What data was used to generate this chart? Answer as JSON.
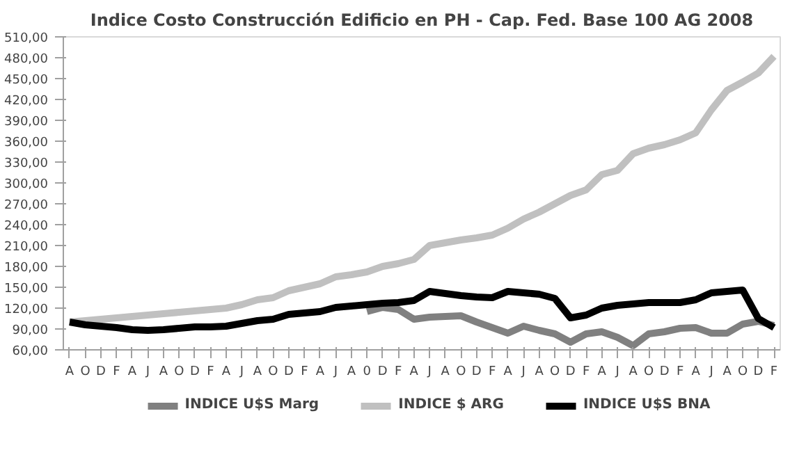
{
  "chart_data": {
    "type": "line",
    "title": "Indice Costo Construcción Edificio en PH - Cap. Fed. Base 100 AG 2008",
    "categories": [
      "A",
      "O",
      "D",
      "F",
      "A",
      "J",
      "A",
      "O",
      "D",
      "F",
      "A",
      "J",
      "A",
      "O",
      "D",
      "F",
      "A",
      "J",
      "A",
      "0",
      "D",
      "F",
      "A",
      "J",
      "A",
      "O",
      "D",
      "F",
      "A",
      "J",
      "A",
      "O",
      "D",
      "F",
      "A",
      "J",
      "A",
      "O",
      "D",
      "F",
      "A",
      "J",
      "A",
      "O",
      "D",
      "F"
    ],
    "series": [
      {
        "name": "INDICE U$S Marg",
        "color": "#808080",
        "values": [
          null,
          null,
          null,
          null,
          null,
          null,
          null,
          null,
          null,
          null,
          null,
          null,
          null,
          null,
          null,
          null,
          null,
          null,
          null,
          115,
          121,
          118,
          104,
          107,
          108,
          109,
          100,
          92,
          84,
          94,
          88,
          83,
          71,
          83,
          86,
          78,
          66,
          83,
          86,
          91,
          92,
          84,
          84,
          97,
          101,
          95
        ]
      },
      {
        "name": "INDICE $ ARG",
        "color": "#c0c0c0",
        "values": [
          100,
          102,
          104,
          106,
          108,
          110,
          112,
          114,
          116,
          118,
          120,
          125,
          132,
          135,
          145,
          150,
          155,
          165,
          168,
          172,
          180,
          184,
          190,
          210,
          214,
          218,
          221,
          225,
          235,
          248,
          258,
          270,
          282,
          290,
          312,
          318,
          342,
          350,
          355,
          362,
          372,
          405,
          433,
          445,
          458,
          482
        ]
      },
      {
        "name": "INDICE U$S BNA",
        "color": "#000000",
        "values": [
          100,
          96,
          94,
          92,
          89,
          88,
          89,
          91,
          93,
          93,
          94,
          98,
          102,
          104,
          111,
          113,
          115,
          121,
          123,
          125,
          127,
          128,
          131,
          144,
          141,
          138,
          136,
          135,
          144,
          142,
          140,
          134,
          106,
          110,
          120,
          124,
          126,
          128,
          128,
          128,
          132,
          142,
          144,
          146,
          105,
          92
        ]
      }
    ],
    "ylim": [
      60,
      510
    ],
    "yticks": [
      {
        "value": 60,
        "label": "60,00"
      },
      {
        "value": 90,
        "label": "90,00"
      },
      {
        "value": 120,
        "label": "120,00"
      },
      {
        "value": 150,
        "label": "150,00"
      },
      {
        "value": 180,
        "label": "180,00"
      },
      {
        "value": 210,
        "label": "210,00"
      },
      {
        "value": 240,
        "label": "240,00"
      },
      {
        "value": 270,
        "label": "270,00"
      },
      {
        "value": 300,
        "label": "300,00"
      },
      {
        "value": 330,
        "label": "330,00"
      },
      {
        "value": 360,
        "label": "360,00"
      },
      {
        "value": 390,
        "label": "390,00"
      },
      {
        "value": 420,
        "label": "420,00"
      },
      {
        "value": 450,
        "label": "450,00"
      },
      {
        "value": 480,
        "label": "480,00"
      },
      {
        "value": 510,
        "label": "510,00"
      }
    ],
    "grid": false,
    "legend": "bottom",
    "marker": "none",
    "line_style": "solid"
  }
}
